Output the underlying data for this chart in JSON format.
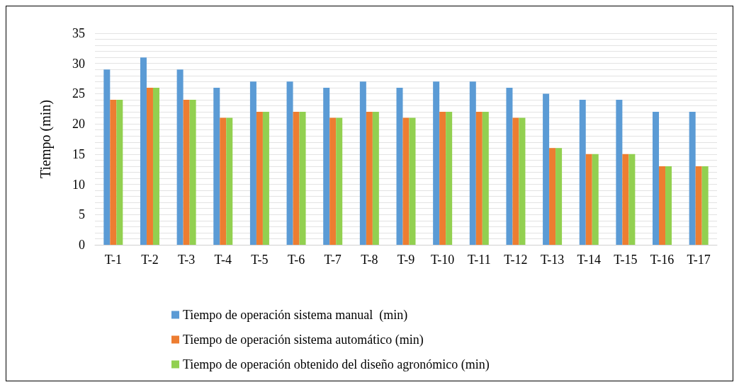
{
  "chart_data": {
    "type": "bar",
    "ylabel": "Tiempo (min)",
    "categories": [
      "T-1",
      "T-2",
      "T-3",
      "T-4",
      "T-5",
      "T-6",
      "T-7",
      "T-8",
      "T-9",
      "T-10",
      "T-11",
      "T-12",
      "T-13",
      "T-14",
      "T-15",
      "T-16",
      "T-17"
    ],
    "series": [
      {
        "name": "Tiempo de operación sistema manual  (min)",
        "color": "#5b9bd5",
        "values": [
          29,
          31,
          29,
          26,
          27,
          27,
          26,
          27,
          26,
          27,
          27,
          26,
          25,
          24,
          24,
          22,
          22
        ]
      },
      {
        "name": "Tiempo de operación sistema automático (min)",
        "color": "#ed7d31",
        "values": [
          24,
          26,
          24,
          21,
          22,
          22,
          21,
          22,
          21,
          22,
          22,
          21,
          16,
          15,
          15,
          13,
          13
        ]
      },
      {
        "name": "Tiempo de operación obtenido del diseño agronómico (min)",
        "color": "#92d050",
        "values": [
          24,
          26,
          24,
          21,
          22,
          22,
          21,
          22,
          21,
          22,
          22,
          21,
          16,
          15,
          15,
          13,
          13
        ]
      }
    ],
    "ylim": [
      0,
      35
    ],
    "yticks": [
      0,
      {
        "value": 1,
        "label": null
      },
      {
        "value": 2,
        "label": null
      },
      {
        "value": 3,
        "label": null
      },
      {
        "value": 4,
        "label": null
      },
      5,
      {
        "value": 6,
        "label": null
      },
      {
        "value": 7,
        "label": null
      },
      {
        "value": 8,
        "label": null
      },
      {
        "value": 9,
        "label": null
      },
      10,
      {
        "value": 11,
        "label": null
      },
      {
        "value": 12,
        "label": null
      },
      {
        "value": 13,
        "label": null
      },
      {
        "value": 14,
        "label": null
      },
      15,
      {
        "value": 16,
        "label": null
      },
      {
        "value": 17,
        "label": null
      },
      {
        "value": 18,
        "label": null
      },
      {
        "value": 19,
        "label": null
      },
      20,
      {
        "value": 21,
        "label": null
      },
      {
        "value": 22,
        "label": null
      },
      {
        "value": 23,
        "label": null
      },
      {
        "value": 24,
        "label": null
      },
      25,
      {
        "value": 26,
        "label": null
      },
      {
        "value": 27,
        "label": null
      },
      {
        "value": 28,
        "label": null
      },
      {
        "value": 29,
        "label": null
      },
      30,
      {
        "value": 31,
        "label": null
      },
      {
        "value": 32,
        "label": null
      },
      {
        "value": 33,
        "label": null
      },
      {
        "value": 34,
        "label": null
      },
      35
    ],
    "grid": "y",
    "legend": "bottom"
  }
}
